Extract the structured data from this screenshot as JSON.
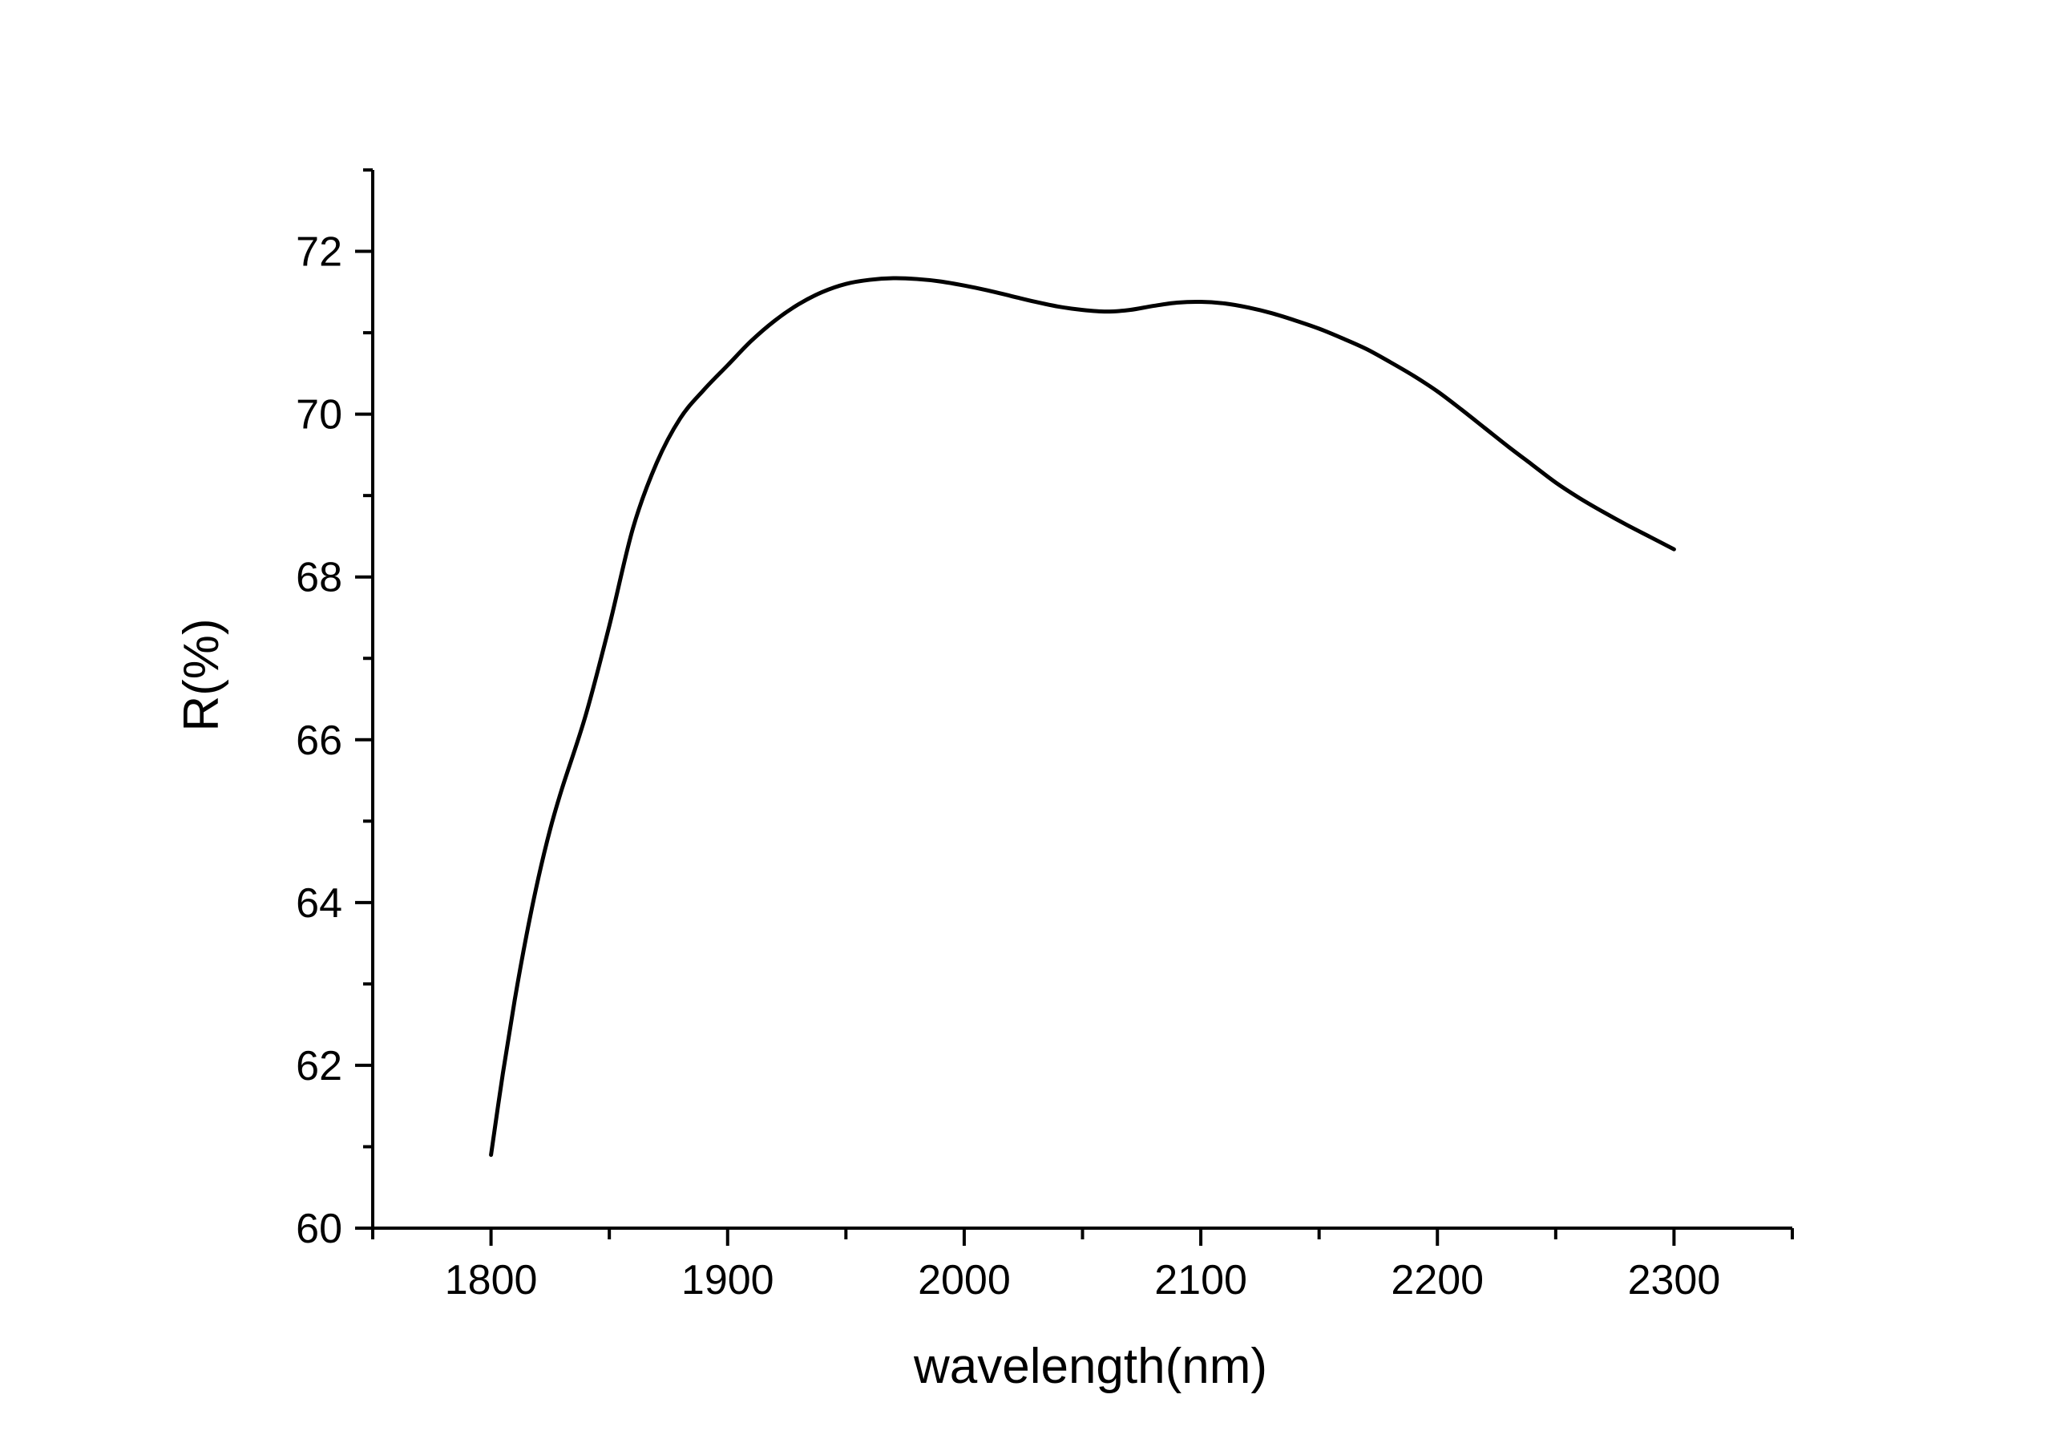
{
  "chart_data": {
    "type": "line",
    "title": "",
    "xlabel": "wavelength(nm)",
    "ylabel": "R(%)",
    "xlim": [
      1750,
      2350
    ],
    "ylim": [
      60,
      73
    ],
    "x_ticks": [
      1800,
      1900,
      2000,
      2100,
      2200,
      2300
    ],
    "x_tick_labels": [
      "1800",
      "1900",
      "2000",
      "2100",
      "2200",
      "2300"
    ],
    "y_ticks": [
      60,
      62,
      64,
      66,
      68,
      70,
      72
    ],
    "y_tick_labels": [
      "60",
      "62",
      "64",
      "66",
      "68",
      "70",
      "72"
    ],
    "grid": false,
    "legend": "none",
    "line_color": "#000000",
    "series": [
      {
        "x": [
          1800,
          1805,
          1810,
          1815,
          1820,
          1825,
          1830,
          1840,
          1850,
          1860,
          1870,
          1880,
          1890,
          1900,
          1910,
          1920,
          1930,
          1940,
          1950,
          1960,
          1970,
          1980,
          1990,
          2000,
          2010,
          2020,
          2030,
          2040,
          2050,
          2060,
          2070,
          2080,
          2090,
          2100,
          2110,
          2120,
          2130,
          2140,
          2150,
          2160,
          2170,
          2180,
          2190,
          2200,
          2210,
          2220,
          2230,
          2240,
          2250,
          2260,
          2270,
          2280,
          2290,
          2300
        ],
        "y": [
          60.9,
          61.9,
          62.8,
          63.6,
          64.3,
          64.9,
          65.4,
          66.3,
          67.4,
          68.6,
          69.4,
          69.95,
          70.3,
          70.6,
          70.9,
          71.15,
          71.35,
          71.5,
          71.6,
          71.65,
          71.67,
          71.66,
          71.63,
          71.58,
          71.52,
          71.45,
          71.38,
          71.32,
          71.28,
          71.26,
          71.28,
          71.33,
          71.37,
          71.38,
          71.36,
          71.31,
          71.24,
          71.15,
          71.05,
          70.93,
          70.8,
          70.64,
          70.47,
          70.28,
          70.06,
          69.83,
          69.6,
          69.38,
          69.16,
          68.97,
          68.8,
          68.64,
          68.49,
          68.34
        ]
      }
    ]
  }
}
